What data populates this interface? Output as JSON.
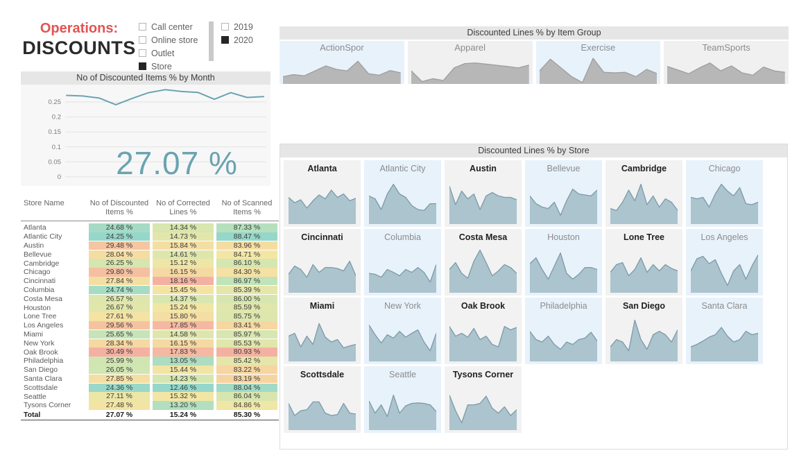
{
  "header": {
    "title_line1": "Operations:",
    "title_line2": "DISCOUNTS"
  },
  "filters": {
    "channel": {
      "options": [
        {
          "label": "Call center",
          "checked": false
        },
        {
          "label": "Online store",
          "checked": false
        },
        {
          "label": "Outlet",
          "checked": false
        },
        {
          "label": "Store",
          "checked": true
        }
      ]
    },
    "year": {
      "options": [
        {
          "label": "2019",
          "checked": false
        },
        {
          "label": "2020",
          "checked": true
        }
      ]
    }
  },
  "colors": {
    "title_red": "#E25353",
    "accent_teal": "#6BA3B1",
    "panel_header_bg": "#E6E6E6",
    "small_multiple_gray_bg": "#F2F2F2",
    "small_multiple_blue_bg": "#E8F2FB",
    "store_area_fill": "#ABC4CE",
    "store_area_line": "#7C9AA8",
    "group_area_fill": "#B7B7B7",
    "group_area_line": "#9E9E9E",
    "table_scale": [
      "#96D7CB",
      "#CBE6B4",
      "#F3E6A4",
      "#F7D0A0",
      "#F4B1A2"
    ]
  },
  "chart_data": [
    {
      "type": "line",
      "title": "No of Discounted Items % by Month",
      "xlabel": "",
      "ylabel": "",
      "y_ticks": [
        0.25,
        0.2,
        0.15,
        0.1,
        0.05,
        0
      ],
      "ylim": [
        0,
        0.3
      ],
      "grid": true,
      "legend": "none",
      "values": [
        0.272,
        0.27,
        0.263,
        0.241,
        0.262,
        0.281,
        0.291,
        0.285,
        0.282,
        0.259,
        0.281,
        0.265,
        0.268
      ],
      "big_number": "27.07 %"
    },
    {
      "type": "area",
      "title": "Discounted Lines % by Item Group",
      "note": "sparkline small multiples; values estimated from pixels, normalized 0-100",
      "series": [
        {
          "name": "ActionSpor",
          "values": [
            25,
            32,
            28,
            45,
            62,
            50,
            45,
            78,
            35,
            30,
            46,
            38
          ]
        },
        {
          "name": "Apparel",
          "values": [
            45,
            8,
            18,
            12,
            55,
            70,
            72,
            68,
            64,
            60,
            55,
            65
          ]
        },
        {
          "name": "Exercise",
          "values": [
            45,
            85,
            55,
            25,
            5,
            88,
            40,
            38,
            40,
            25,
            50,
            35
          ]
        },
        {
          "name": "TeamSports",
          "values": [
            60,
            48,
            35,
            55,
            72,
            45,
            62,
            38,
            30,
            58,
            45,
            40
          ]
        }
      ]
    },
    {
      "type": "area",
      "title": "Discounted Lines % by Store",
      "note": "sparkline small multiples; values estimated from pixels, normalized 0-100",
      "series": [
        {
          "name": "Atlanta",
          "values": [
            55,
            44,
            50,
            33,
            48,
            60,
            52,
            70,
            55,
            62,
            48,
            53
          ]
        },
        {
          "name": "Atlantic City",
          "values": [
            58,
            52,
            30,
            62,
            82,
            62,
            55,
            38,
            30,
            28,
            42,
            42
          ]
        },
        {
          "name": "Austin",
          "values": [
            78,
            40,
            68,
            52,
            62,
            30,
            58,
            65,
            58,
            55,
            55,
            50
          ]
        },
        {
          "name": "Bellevue",
          "values": [
            58,
            42,
            35,
            32,
            45,
            18,
            48,
            72,
            62,
            60,
            58,
            70
          ]
        },
        {
          "name": "Cambridge",
          "values": [
            32,
            28,
            45,
            70,
            48,
            82,
            40,
            58,
            35,
            52,
            45,
            28
          ]
        },
        {
          "name": "Chicago",
          "values": [
            55,
            52,
            55,
            35,
            62,
            82,
            68,
            58,
            75,
            42,
            40,
            45
          ]
        },
        {
          "name": "Cincinnati",
          "values": [
            38,
            55,
            48,
            32,
            58,
            42,
            52,
            52,
            50,
            45,
            65,
            35
          ]
        },
        {
          "name": "Columbia",
          "values": [
            40,
            38,
            32,
            48,
            42,
            35,
            48,
            42,
            52,
            42,
            22,
            58
          ]
        },
        {
          "name": "Costa Mesa",
          "values": [
            48,
            62,
            40,
            30,
            65,
            88,
            62,
            35,
            45,
            58,
            52,
            40
          ]
        },
        {
          "name": "Houston",
          "values": [
            60,
            72,
            48,
            28,
            55,
            82,
            40,
            28,
            38,
            52,
            52,
            48
          ]
        },
        {
          "name": "Lone Tree",
          "values": [
            42,
            58,
            62,
            35,
            48,
            72,
            42,
            58,
            45,
            58,
            50,
            45
          ]
        },
        {
          "name": "Los Angeles",
          "values": [
            45,
            70,
            75,
            60,
            68,
            40,
            15,
            45,
            58,
            28,
            55,
            78
          ]
        },
        {
          "name": "Miami",
          "values": [
            52,
            58,
            30,
            52,
            35,
            78,
            50,
            40,
            45,
            28,
            32,
            35
          ]
        },
        {
          "name": "New York",
          "values": [
            75,
            55,
            38,
            55,
            48,
            62,
            50,
            58,
            65,
            40,
            22,
            58
          ]
        },
        {
          "name": "Oak Brook",
          "values": [
            72,
            52,
            58,
            50,
            68,
            45,
            52,
            35,
            30,
            72,
            65,
            70
          ]
        },
        {
          "name": "Philadelphia",
          "values": [
            62,
            45,
            40,
            52,
            35,
            25,
            40,
            35,
            45,
            48,
            60,
            42
          ]
        },
        {
          "name": "San Diego",
          "values": [
            30,
            45,
            40,
            22,
            85,
            45,
            25,
            55,
            62,
            55,
            40,
            65
          ]
        },
        {
          "name": "Santa Clara",
          "values": [
            30,
            35,
            42,
            50,
            55,
            70,
            52,
            40,
            45,
            62,
            55,
            58
          ]
        },
        {
          "name": "Scottsdale",
          "values": [
            55,
            30,
            40,
            42,
            58,
            58,
            35,
            30,
            32,
            55,
            35,
            33
          ]
        },
        {
          "name": "Seattle",
          "values": [
            60,
            35,
            52,
            28,
            72,
            35,
            50,
            55,
            56,
            55,
            52,
            38
          ]
        },
        {
          "name": "Tysons Corner",
          "values": [
            72,
            40,
            15,
            52,
            52,
            55,
            70,
            45,
            35,
            48,
            30,
            42
          ]
        }
      ]
    }
  ],
  "table": {
    "columns": [
      "Store Name",
      "No of Discounted Items %",
      "No of Corrected Lines %",
      "No of Scanned Items %"
    ],
    "value_suffix": " %",
    "rows": [
      [
        "Atlanta",
        24.68,
        14.34,
        87.33
      ],
      [
        "Atlantic City",
        24.25,
        14.73,
        88.47
      ],
      [
        "Austin",
        29.48,
        15.84,
        83.96
      ],
      [
        "Bellevue",
        28.04,
        14.61,
        84.71
      ],
      [
        "Cambridge",
        26.25,
        15.12,
        86.1
      ],
      [
        "Chicago",
        29.8,
        16.15,
        84.3
      ],
      [
        "Cincinnati",
        27.84,
        18.16,
        86.97
      ],
      [
        "Columbia",
        24.74,
        15.45,
        85.39
      ],
      [
        "Costa Mesa",
        26.57,
        14.37,
        86.0
      ],
      [
        "Houston",
        26.67,
        15.24,
        85.59
      ],
      [
        "Lone Tree",
        27.61,
        15.8,
        85.75
      ],
      [
        "Los Angeles",
        29.56,
        17.85,
        83.41
      ],
      [
        "Miami",
        25.65,
        14.58,
        85.97
      ],
      [
        "New York",
        28.34,
        16.15,
        85.53
      ],
      [
        "Oak Brook",
        30.49,
        17.83,
        80.93
      ],
      [
        "Philadelphia",
        25.99,
        13.05,
        85.42
      ],
      [
        "San Diego",
        26.05,
        15.44,
        83.22
      ],
      [
        "Santa Clara",
        27.85,
        14.23,
        83.19
      ],
      [
        "Scottsdale",
        24.36,
        12.46,
        88.04
      ],
      [
        "Seattle",
        27.11,
        15.32,
        86.04
      ],
      [
        "Tysons Corner",
        27.48,
        13.2,
        84.86
      ]
    ],
    "total": [
      "Total",
      27.07,
      15.24,
      85.3
    ]
  }
}
